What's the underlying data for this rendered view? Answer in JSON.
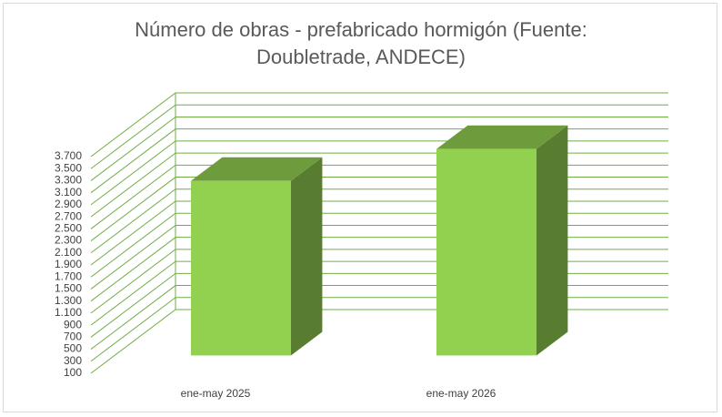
{
  "chart_data": {
    "type": "bar3d",
    "title": "Número de obras - prefabricado hormigón (Fuente: Doubletrade, ANDECE)",
    "categories": [
      "ene-may 2025",
      "ene-may 2026"
    ],
    "values": [
      3000,
      3530
    ],
    "color": "#92d050",
    "ylim": [
      100,
      3700
    ],
    "yticks": [
      100,
      300,
      500,
      700,
      900,
      {
        "value": 1100,
        "label": "1.100"
      },
      {
        "value": 1300,
        "label": "1.300"
      },
      {
        "value": 1500,
        "label": "1.500"
      },
      {
        "value": 1700,
        "label": "1.700"
      },
      {
        "value": 1900,
        "label": "1.900"
      },
      {
        "value": 2100,
        "label": "2.100"
      },
      {
        "value": 2300,
        "label": "2.300"
      },
      {
        "value": 2500,
        "label": "2.500"
      },
      {
        "value": 2700,
        "label": "2.700"
      },
      {
        "value": 2900,
        "label": "2.900"
      },
      {
        "value": 3100,
        "label": "3.100"
      },
      {
        "value": 3300,
        "label": "3.300"
      },
      {
        "value": 3500,
        "label": "3.500"
      },
      {
        "value": 3700,
        "label": "3.700"
      }
    ],
    "grid": true
  }
}
